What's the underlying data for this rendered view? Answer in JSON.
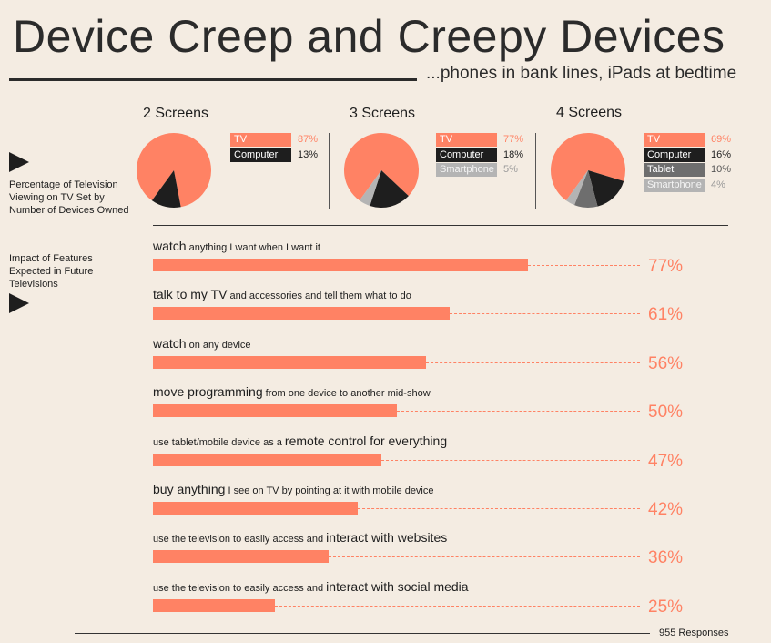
{
  "title": "Device Creep and Creepy Devices",
  "subtitle": "...phones in bank lines, iPads at bedtime",
  "pie_section_label": [
    "Percentage of Television",
    "Viewing on TV Set by",
    "Number of Devices Owned"
  ],
  "bar_section_label": [
    "Impact of Features",
    "Expected in Future",
    "Televisions"
  ],
  "responses": "955 Responses",
  "colors": {
    "tv": "#ff8264",
    "computer": "#1e1e1e",
    "tablet": "#6e6e6e",
    "smartphone": "#b4b4b4",
    "background": "#f4ece2"
  },
  "chart_data": [
    {
      "type": "pie",
      "title": "2 Screens",
      "slices": [
        {
          "label": "TV",
          "value": 87
        },
        {
          "label": "Computer",
          "value": 13
        }
      ]
    },
    {
      "type": "pie",
      "title": "3 Screens",
      "slices": [
        {
          "label": "TV",
          "value": 77
        },
        {
          "label": "Computer",
          "value": 18
        },
        {
          "label": "Smartphone",
          "value": 5
        }
      ]
    },
    {
      "type": "pie",
      "title": "4 Screens",
      "slices": [
        {
          "label": "TV",
          "value": 69
        },
        {
          "label": "Computer",
          "value": 16
        },
        {
          "label": "Tablet",
          "value": 10
        },
        {
          "label": "Smartphone",
          "value": 4
        }
      ]
    },
    {
      "type": "bar",
      "orientation": "horizontal",
      "xlim": [
        0,
        100
      ],
      "categories": [
        [
          {
            "t": "watch",
            "bold": true
          },
          {
            "t": " anything I want when I want it",
            "bold": false
          }
        ],
        [
          {
            "t": "talk to my TV",
            "bold": true
          },
          {
            "t": " and accessories and tell them what to do",
            "bold": false
          }
        ],
        [
          {
            "t": "watch",
            "bold": true
          },
          {
            "t": " on any device",
            "bold": false
          }
        ],
        [
          {
            "t": "move programming",
            "bold": true
          },
          {
            "t": " from one device to another mid-show",
            "bold": false
          }
        ],
        [
          {
            "t": "use tablet/mobile device as a ",
            "bold": false
          },
          {
            "t": "remote control for everything",
            "bold": true
          }
        ],
        [
          {
            "t": "buy anything",
            "bold": true
          },
          {
            "t": " I see on TV by pointing at it with mobile device",
            "bold": false
          }
        ],
        [
          {
            "t": "use the television to easily access and ",
            "bold": false
          },
          {
            "t": "interact with websites",
            "bold": true
          }
        ],
        [
          {
            "t": "use the television to easily access and ",
            "bold": false
          },
          {
            "t": "interact with social media",
            "bold": true
          }
        ]
      ],
      "values": [
        77,
        61,
        56,
        50,
        47,
        42,
        36,
        25
      ],
      "value_suffix": "%"
    }
  ]
}
